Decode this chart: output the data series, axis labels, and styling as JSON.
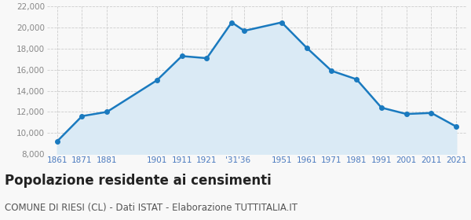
{
  "years": [
    1861,
    1871,
    1881,
    1901,
    1911,
    1921,
    1931,
    1936,
    1951,
    1961,
    1971,
    1981,
    1991,
    2001,
    2011,
    2021
  ],
  "x_labels": [
    "1861",
    "1871",
    "1881",
    "1901",
    "1911",
    "1921",
    "'31",
    "'36",
    "1951",
    "1961",
    "1971",
    "1981",
    "1991",
    "2001",
    "2011",
    "2021"
  ],
  "population": [
    9200,
    11600,
    12000,
    15000,
    17300,
    17100,
    20500,
    19700,
    20500,
    18100,
    15900,
    15100,
    12400,
    11800,
    11900,
    10600
  ],
  "line_color": "#1a7abf",
  "fill_color": "#daeaf5",
  "marker_color": "#1a7abf",
  "background_color": "#f8f8f8",
  "grid_color": "#cccccc",
  "title": "Popolazione residente ai censimenti",
  "subtitle": "COMUNE DI RIESI (CL) - Dati ISTAT - Elaborazione TUTTITALIA.IT",
  "ylim": [
    8000,
    22000
  ],
  "yticks": [
    8000,
    10000,
    12000,
    14000,
    16000,
    18000,
    20000,
    22000
  ],
  "title_fontsize": 12,
  "subtitle_fontsize": 8.5,
  "tick_color_x": "#4a7abf",
  "tick_color_y": "#888888",
  "title_color": "#222222",
  "subtitle_color": "#555555"
}
